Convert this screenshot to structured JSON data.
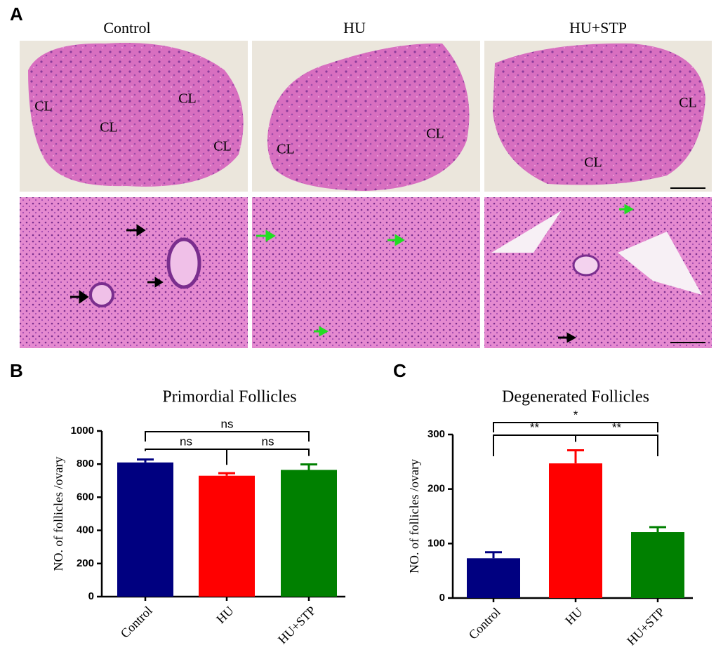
{
  "panel_labels": [
    "A",
    "B",
    "C"
  ],
  "histology": {
    "columns": [
      "Control",
      "HU",
      "HU+STP"
    ],
    "cl_labels": [
      [
        "CL",
        "CL",
        "CL",
        "CL"
      ],
      [
        "CL",
        "CL"
      ],
      [
        "CL",
        "CL"
      ]
    ]
  },
  "chart_data": [
    {
      "type": "bar",
      "title": "Primordial Follicles",
      "ylabel": "NO. of follicles /ovary",
      "categories": [
        "Control",
        "HU",
        "HU+STP"
      ],
      "values": [
        810,
        730,
        765
      ],
      "errors": [
        18,
        15,
        33
      ],
      "colors": [
        "#000080",
        "#ff0000",
        "#008000"
      ],
      "ylim": [
        0,
        1000
      ],
      "yticks": [
        0,
        200,
        400,
        600,
        800,
        1000
      ],
      "significance": [
        {
          "pair": [
            0,
            2
          ],
          "label": "ns"
        },
        {
          "pair": [
            0,
            1
          ],
          "label": "ns"
        },
        {
          "pair": [
            1,
            2
          ],
          "label": "ns"
        }
      ]
    },
    {
      "type": "bar",
      "title": "Degenerated Follicles",
      "ylabel": "NO. of follicles /ovary",
      "categories": [
        "Control",
        "HU",
        "HU+STP"
      ],
      "values": [
        73,
        247,
        121
      ],
      "errors": [
        11,
        24,
        9
      ],
      "colors": [
        "#000080",
        "#ff0000",
        "#008000"
      ],
      "ylim": [
        0,
        300
      ],
      "yticks": [
        0,
        100,
        200,
        300
      ],
      "significance": [
        {
          "pair": [
            0,
            2
          ],
          "label": "*"
        },
        {
          "pair": [
            0,
            1
          ],
          "label": "**"
        },
        {
          "pair": [
            1,
            2
          ],
          "label": "**"
        }
      ]
    }
  ]
}
